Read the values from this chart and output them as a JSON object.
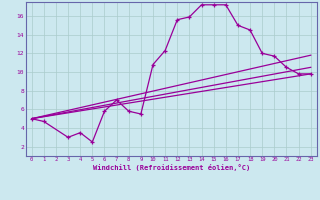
{
  "xlabel": "Windchill (Refroidissement éolien,°C)",
  "bg_color": "#cce8ef",
  "line_color": "#990099",
  "grid_color": "#aacccc",
  "spine_color": "#6666aa",
  "x_ticks": [
    0,
    1,
    2,
    3,
    4,
    5,
    6,
    7,
    8,
    9,
    10,
    11,
    12,
    13,
    14,
    15,
    16,
    17,
    18,
    19,
    20,
    21,
    22,
    23
  ],
  "y_ticks": [
    2,
    4,
    6,
    8,
    10,
    12,
    14,
    16
  ],
  "xlim": [
    -0.5,
    23.5
  ],
  "ylim": [
    1.0,
    17.5
  ],
  "line1_x": [
    0,
    1,
    3,
    4,
    5,
    6,
    7,
    8,
    9,
    10,
    11,
    12,
    13,
    14,
    15,
    16,
    17,
    18,
    19,
    20,
    21,
    22,
    23
  ],
  "line1_y": [
    5.0,
    4.7,
    3.0,
    3.5,
    2.5,
    5.8,
    7.0,
    5.8,
    5.5,
    10.8,
    12.3,
    15.6,
    15.9,
    17.2,
    17.2,
    17.2,
    15.0,
    14.5,
    12.0,
    11.7,
    10.5,
    9.8,
    9.8
  ],
  "line2_x": [
    0,
    23
  ],
  "line2_y": [
    5.0,
    10.5
  ],
  "line3_x": [
    0,
    23
  ],
  "line3_y": [
    5.0,
    11.8
  ],
  "line4_x": [
    0,
    23
  ],
  "line4_y": [
    5.0,
    9.8
  ]
}
